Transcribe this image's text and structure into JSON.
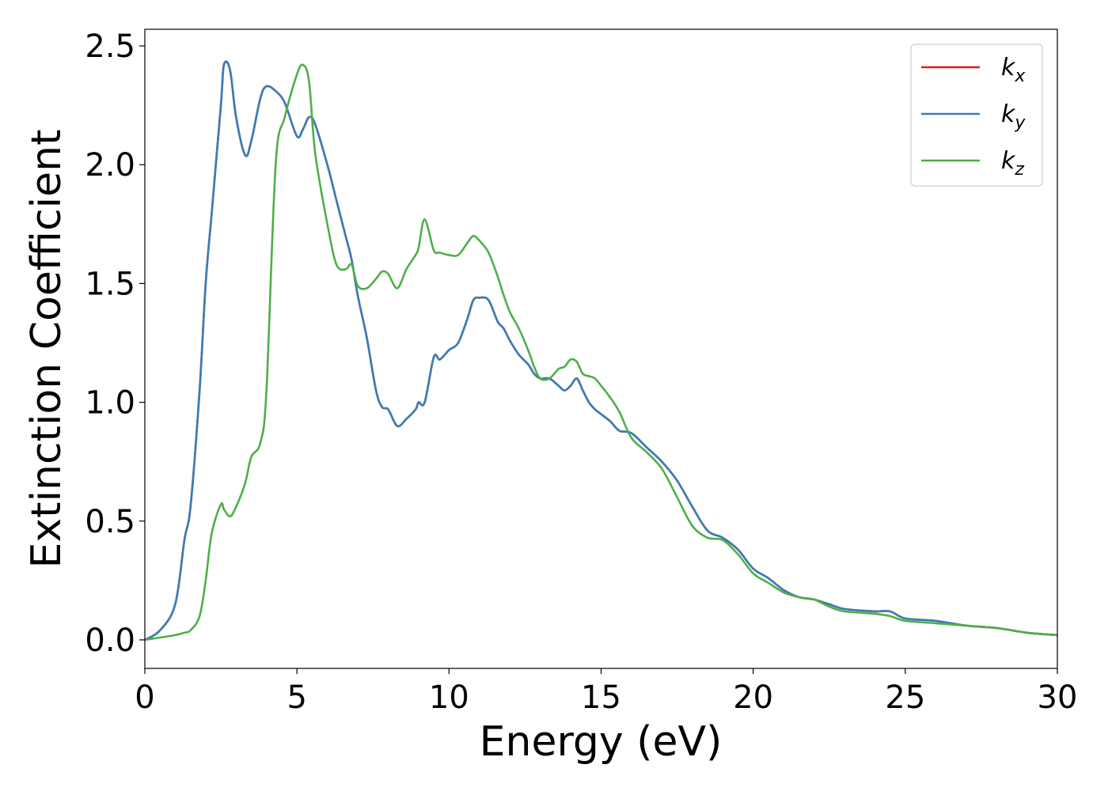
{
  "chart_data": {
    "type": "line",
    "xlabel": "Energy (eV)",
    "ylabel": "Extinction Coefficient",
    "xlim": [
      0,
      30
    ],
    "ylim": [
      -0.12,
      2.57
    ],
    "x_ticks": [
      "0",
      "5",
      "10",
      "15",
      "20",
      "25",
      "30"
    ],
    "y_ticks": [
      "0.0",
      "0.5",
      "1.0",
      "1.5",
      "2.0",
      "2.5"
    ],
    "grid": false,
    "legend_position": "top-right",
    "x": [
      0,
      0.5,
      1.0,
      1.3,
      1.5,
      1.8,
      2.0,
      2.2,
      2.5,
      2.6,
      2.8,
      3.0,
      3.3,
      3.5,
      3.8,
      4.0,
      4.3,
      4.6,
      5.0,
      5.2,
      5.4,
      5.6,
      6.0,
      6.3,
      6.6,
      6.8,
      7.0,
      7.3,
      7.6,
      7.8,
      8.0,
      8.3,
      8.6,
      8.9,
      9.0,
      9.2,
      9.5,
      9.7,
      10.0,
      10.3,
      10.6,
      10.8,
      11.0,
      11.3,
      11.6,
      11.8,
      12.0,
      12.3,
      12.6,
      12.8,
      13.0,
      13.3,
      13.6,
      13.8,
      14.0,
      14.2,
      14.4,
      14.6,
      14.8,
      15.0,
      15.3,
      15.6,
      16.0,
      16.5,
      17.0,
      17.5,
      18.0,
      18.5,
      19.0,
      19.5,
      20.0,
      20.5,
      21.0,
      21.5,
      22.0,
      22.5,
      23.0,
      24.0,
      24.5,
      25.0,
      26.0,
      27.0,
      28.0,
      29.0,
      30.0
    ],
    "series": [
      {
        "name": "k",
        "subscript": "x",
        "color": "#e41a1c",
        "values": [
          0.0,
          0.04,
          0.15,
          0.42,
          0.56,
          1.05,
          1.5,
          1.8,
          2.25,
          2.42,
          2.4,
          2.2,
          2.04,
          2.1,
          2.28,
          2.33,
          2.31,
          2.26,
          2.12,
          2.15,
          2.2,
          2.17,
          2.0,
          1.85,
          1.7,
          1.6,
          1.45,
          1.27,
          1.05,
          0.98,
          0.97,
          0.9,
          0.93,
          0.97,
          1.0,
          1.0,
          1.19,
          1.18,
          1.22,
          1.25,
          1.35,
          1.43,
          1.44,
          1.43,
          1.34,
          1.31,
          1.26,
          1.2,
          1.16,
          1.12,
          1.1,
          1.1,
          1.07,
          1.05,
          1.07,
          1.1,
          1.05,
          1.0,
          0.97,
          0.95,
          0.92,
          0.88,
          0.87,
          0.81,
          0.75,
          0.67,
          0.56,
          0.46,
          0.43,
          0.38,
          0.3,
          0.26,
          0.21,
          0.18,
          0.17,
          0.15,
          0.13,
          0.12,
          0.12,
          0.09,
          0.08,
          0.06,
          0.05,
          0.03,
          0.02
        ]
      },
      {
        "name": "k",
        "subscript": "y",
        "color": "#377eb8",
        "values": [
          0.0,
          0.04,
          0.15,
          0.42,
          0.56,
          1.05,
          1.5,
          1.8,
          2.25,
          2.42,
          2.4,
          2.2,
          2.04,
          2.1,
          2.28,
          2.33,
          2.31,
          2.26,
          2.12,
          2.15,
          2.2,
          2.17,
          2.0,
          1.85,
          1.7,
          1.6,
          1.45,
          1.27,
          1.05,
          0.98,
          0.97,
          0.9,
          0.93,
          0.97,
          1.0,
          1.0,
          1.19,
          1.18,
          1.22,
          1.25,
          1.35,
          1.43,
          1.44,
          1.43,
          1.34,
          1.31,
          1.26,
          1.2,
          1.16,
          1.12,
          1.1,
          1.1,
          1.07,
          1.05,
          1.07,
          1.1,
          1.05,
          1.0,
          0.97,
          0.95,
          0.92,
          0.88,
          0.87,
          0.81,
          0.75,
          0.67,
          0.56,
          0.46,
          0.43,
          0.38,
          0.3,
          0.26,
          0.21,
          0.18,
          0.17,
          0.15,
          0.13,
          0.12,
          0.12,
          0.09,
          0.08,
          0.06,
          0.05,
          0.03,
          0.02
        ]
      },
      {
        "name": "k",
        "subscript": "z",
        "color": "#4daf4a",
        "values": [
          0.0,
          0.01,
          0.02,
          0.03,
          0.04,
          0.1,
          0.25,
          0.45,
          0.57,
          0.55,
          0.52,
          0.56,
          0.66,
          0.77,
          0.83,
          1.05,
          2.0,
          2.2,
          2.38,
          2.42,
          2.35,
          2.05,
          1.75,
          1.58,
          1.56,
          1.58,
          1.49,
          1.48,
          1.52,
          1.55,
          1.54,
          1.48,
          1.56,
          1.62,
          1.65,
          1.77,
          1.64,
          1.63,
          1.62,
          1.62,
          1.67,
          1.7,
          1.68,
          1.63,
          1.53,
          1.45,
          1.38,
          1.31,
          1.22,
          1.15,
          1.1,
          1.1,
          1.14,
          1.15,
          1.18,
          1.17,
          1.12,
          1.11,
          1.1,
          1.07,
          1.02,
          0.96,
          0.85,
          0.79,
          0.72,
          0.6,
          0.48,
          0.43,
          0.42,
          0.36,
          0.28,
          0.24,
          0.2,
          0.18,
          0.17,
          0.14,
          0.12,
          0.11,
          0.1,
          0.08,
          0.07,
          0.06,
          0.05,
          0.03,
          0.02
        ]
      }
    ]
  }
}
